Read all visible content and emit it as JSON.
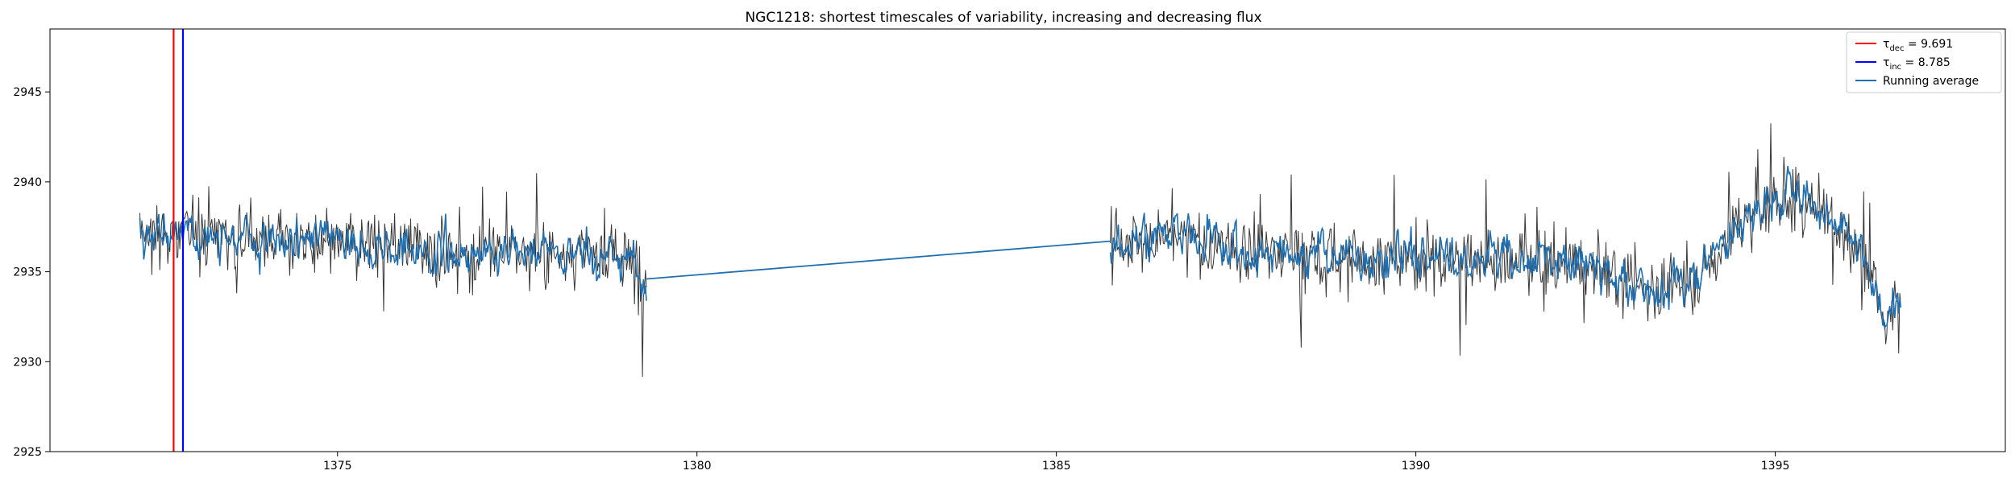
{
  "chart_data": {
    "type": "line",
    "title": "NGC1218: shortest timescales of variability, increasing and decreasing flux",
    "xlabel": "",
    "ylabel": "",
    "xlim": [
      1371.0,
      1398.2
    ],
    "ylim": [
      2925,
      2948.5
    ],
    "xticks": [
      1375,
      1380,
      1385,
      1390,
      1395
    ],
    "yticks": [
      2925,
      2930,
      2935,
      2940,
      2945
    ],
    "grid": false,
    "legend_position": "top-right",
    "segments": [
      {
        "x_start": 1372.25,
        "x_end": 1379.3
      },
      {
        "x_start": 1385.75,
        "x_end": 1396.75
      }
    ],
    "running_average_x": [
      1372.25,
      1373.0,
      1374.0,
      1375.0,
      1376.0,
      1377.0,
      1378.0,
      1379.0,
      1379.3,
      1385.75,
      1386.5,
      1387.5,
      1388.5,
      1389.5,
      1390.5,
      1391.5,
      1392.5,
      1393.0,
      1393.5,
      1394.0,
      1394.5,
      1395.0,
      1395.5,
      1396.0,
      1396.3,
      1396.5,
      1396.75
    ],
    "running_average_y": [
      2937.0,
      2937.2,
      2936.8,
      2936.5,
      2936.3,
      2936.0,
      2936.2,
      2935.8,
      2934.6,
      2936.7,
      2937.0,
      2936.2,
      2935.9,
      2935.7,
      2935.8,
      2935.7,
      2935.2,
      2934.3,
      2934.0,
      2935.2,
      2937.6,
      2939.2,
      2939.0,
      2937.2,
      2935.2,
      2932.3,
      2933.5
    ],
    "running_average_noise": 1.7,
    "flux_noise": 2.7,
    "vertical_lines": [
      {
        "name": "tau_dec",
        "x": 1372.72,
        "color": "#ff0000"
      },
      {
        "name": "tau_inc",
        "x": 1372.85,
        "color": "#0000ff"
      }
    ],
    "series": [
      {
        "name": "Running average",
        "color": "#1f6fb0"
      }
    ],
    "colors": {
      "flux": "#222222",
      "running_average": "#1f6fb0",
      "tau_dec": "#ff0000",
      "tau_inc": "#0000ff"
    },
    "legend": {
      "tau_dec": {
        "sym": "τ",
        "sub": "dec",
        "rest": " = 9.691"
      },
      "tau_inc": {
        "sym": "τ",
        "sub": "inc",
        "rest": " = 8.785"
      },
      "running": {
        "text": "Running average"
      }
    }
  }
}
